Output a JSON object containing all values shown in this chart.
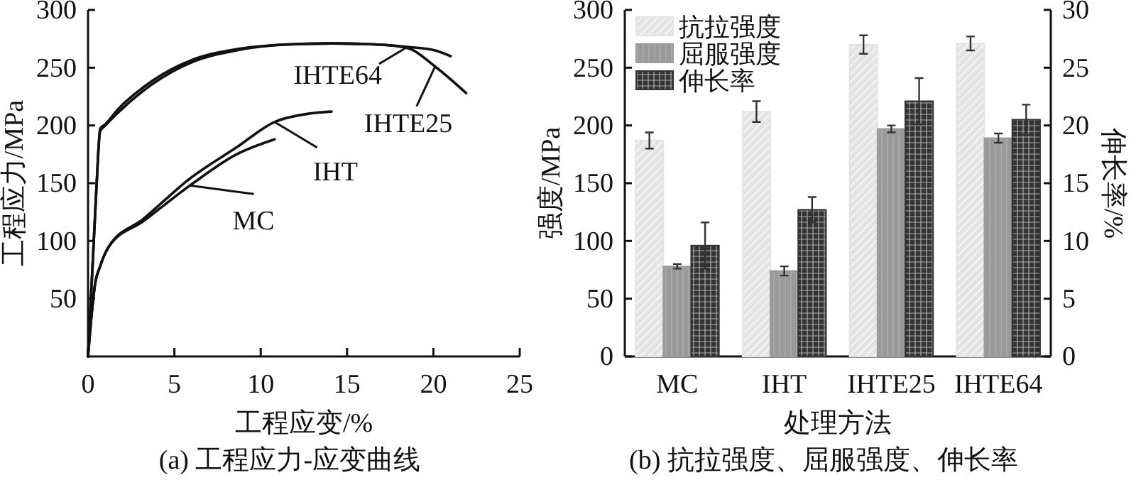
{
  "chart_data": [
    {
      "type": "line",
      "title": "(a) 工程应力-应变曲线",
      "xlabel": "工程应变/%",
      "ylabel": "工程应力/MPa",
      "xlim": [
        0,
        25
      ],
      "xticks": [
        0,
        5,
        10,
        15,
        20,
        25
      ],
      "ylim": [
        0,
        300
      ],
      "yticks": [
        50,
        100,
        150,
        200,
        250,
        300
      ],
      "grid": false,
      "legend": "right",
      "marker": "none",
      "line_style": "solid",
      "series": [
        {
          "name": "IHTE64",
          "color": "#111111",
          "x": [
            0,
            0.3,
            0.5,
            0.7,
            1,
            1.8,
            3.2,
            5.9,
            8.6,
            11.4,
            14.1,
            16.8,
            18.5,
            20.1,
            21
          ],
          "values": [
            0,
            90,
            150,
            195,
            200,
            212,
            230,
            254,
            265,
            270,
            271,
            270,
            268,
            265,
            260
          ]
        },
        {
          "name": "IHTE25",
          "color": "#111111",
          "x": [
            0,
            0.3,
            0.5,
            0.7,
            1,
            1.8,
            3.2,
            5.9,
            8.6,
            11.4,
            14.1,
            16.8,
            18.5,
            20.1,
            21.9
          ],
          "values": [
            0,
            90,
            150,
            197,
            201,
            215,
            233,
            256,
            266,
            270,
            271,
            270,
            267,
            251,
            228
          ]
        },
        {
          "name": "IHT",
          "color": "#111111",
          "x": [
            0,
            0.2,
            0.4,
            0.7,
            1.2,
            3.2,
            5.9,
            8.6,
            10.8,
            12.7,
            14.1
          ],
          "values": [
            0,
            35,
            62,
            78,
            95,
            119,
            154,
            181,
            203,
            210,
            212
          ]
        },
        {
          "name": "MC",
          "color": "#111111",
          "x": [
            0,
            0.2,
            0.4,
            0.7,
            1.2,
            3.2,
            5.9,
            8.6,
            10.8
          ],
          "values": [
            0,
            35,
            62,
            78,
            95,
            117,
            148,
            175,
            188
          ]
        }
      ]
    },
    {
      "type": "bar",
      "title": "(b) 抗拉强度、屈服强度、伸长率",
      "xlabel": "处理方法",
      "ylabel": "强度/MPa",
      "y2label": "伸长率/%",
      "categories": [
        "MC",
        "IHT",
        "IHTE25",
        "IHTE64"
      ],
      "ylim": [
        0,
        300
      ],
      "yticks": [
        0,
        50,
        100,
        150,
        200,
        250,
        300
      ],
      "y2lim": [
        0,
        30
      ],
      "y2ticks": [
        0,
        5,
        10,
        15,
        20,
        25,
        30
      ],
      "grid": false,
      "legend": "top left",
      "series": [
        {
          "name": "抗拉强度",
          "color": "#e4e4e4",
          "values": [
            187,
            212,
            270,
            271
          ],
          "errors": [
            7,
            9,
            8,
            6
          ]
        },
        {
          "name": "屈服强度",
          "color": "#9a9a9a",
          "values": [
            78,
            74,
            197,
            189
          ],
          "errors": [
            2,
            4,
            3,
            4
          ]
        },
        {
          "name": "伸长率",
          "color": "#333333",
          "axis": "y2",
          "values": [
            9.6,
            12.7,
            22.1,
            20.5
          ],
          "errors": [
            2,
            1.1,
            2,
            1.3
          ]
        }
      ]
    }
  ]
}
